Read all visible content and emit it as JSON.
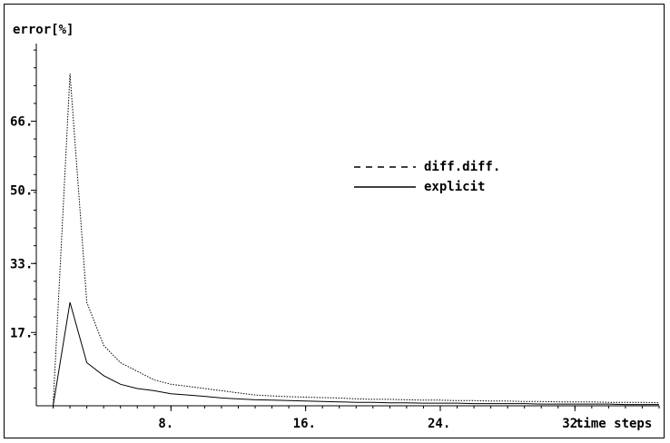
{
  "chart_data": {
    "type": "line",
    "title": "",
    "ylabel": "error[%]",
    "xlabel": "time steps",
    "xlim": [
      0,
      37
    ],
    "ylim": [
      0,
      84
    ],
    "x_ticks": [
      8,
      16,
      24,
      32
    ],
    "x_tick_labels": [
      "8.",
      "16.",
      "24.",
      "32."
    ],
    "y_ticks": [
      17,
      33,
      50,
      66
    ],
    "y_tick_labels": [
      "17.",
      "33.",
      "50.",
      "66."
    ],
    "grid": false,
    "legend_position": "center-right",
    "x": [
      1,
      2,
      3,
      4,
      5,
      6,
      7,
      8,
      9,
      10,
      11,
      12,
      13,
      14,
      15,
      16,
      17,
      18,
      19,
      20,
      21,
      22,
      23,
      24,
      25,
      26,
      27,
      28,
      29,
      30,
      31,
      32,
      33,
      34,
      35,
      36,
      37
    ],
    "series": [
      {
        "name": "diff.diff.",
        "style": "dashed",
        "color": "#000000",
        "values": [
          0,
          77,
          24,
          14,
          10,
          8,
          6,
          5,
          4.5,
          4,
          3.5,
          3,
          2.5,
          2.3,
          2.1,
          2,
          1.9,
          1.8,
          1.6,
          1.5,
          1.5,
          1.4,
          1.3,
          1.3,
          1.2,
          1.2,
          1.1,
          1.1,
          1.0,
          1.0,
          0.9,
          0.9,
          0.9,
          0.8,
          0.8,
          0.8,
          0.7
        ]
      },
      {
        "name": "explicit",
        "style": "solid",
        "color": "#000000",
        "values": [
          0,
          24,
          10,
          7,
          5,
          4,
          3.5,
          2.8,
          2.5,
          2.2,
          1.8,
          1.6,
          1.4,
          1.3,
          1.2,
          1.1,
          1.0,
          0.9,
          0.8,
          0.8,
          0.7,
          0.7,
          0.6,
          0.6,
          0.6,
          0.5,
          0.5,
          0.5,
          0.5,
          0.4,
          0.4,
          0.4,
          0.4,
          0.4,
          0.3,
          0.3,
          0.3
        ]
      }
    ]
  }
}
